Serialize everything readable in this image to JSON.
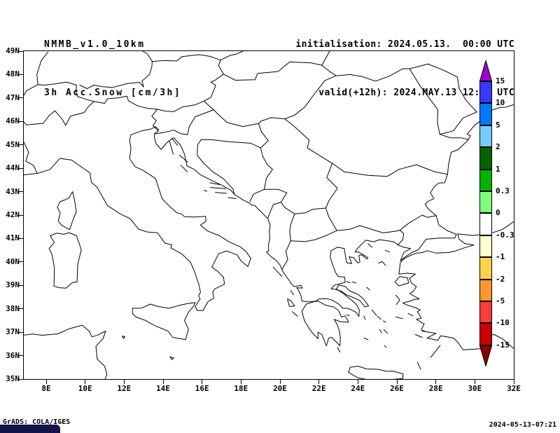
{
  "header": {
    "model": "NMMB_v1.0_10km",
    "product": "3h Acc.Snow [cm/3h]",
    "init": "initialisation: 2024.05.13.  00:00 UTC",
    "valid": "valid(+12h): 2024.MAY.13 12:00 UTC"
  },
  "map": {
    "lat_ticks": [
      "49N",
      "48N",
      "47N",
      "46N",
      "45N",
      "44N",
      "43N",
      "42N",
      "41N",
      "40N",
      "39N",
      "38N",
      "37N",
      "36N",
      "35N"
    ],
    "lon_ticks": [
      "8E",
      "10E",
      "12E",
      "14E",
      "16E",
      "18E",
      "20E",
      "22E",
      "24E",
      "26E",
      "28E",
      "30E",
      "32E"
    ],
    "lon_range": [
      6.85,
      32.0
    ],
    "lat_range": [
      35.0,
      49.0
    ]
  },
  "colorbar": {
    "tick_labels": [
      "15",
      "10",
      "5",
      "2",
      "1",
      "0.3",
      "0",
      "-0.3",
      "-1",
      "-2",
      "-5",
      "-10",
      "-15"
    ],
    "arrow_top_color": "#a000c8",
    "segment_colors": [
      "#3838ff",
      "#0077ff",
      "#77ccff",
      "#006400",
      "#00b400",
      "#7dff7d",
      "#ffffff",
      "#ffffd0",
      "#ffd24d",
      "#ff9632",
      "#fa3c3c",
      "#c80000"
    ],
    "arrow_bottom_color": "#8b0000"
  },
  "footer": {
    "credit": "GrADS: COLA/IGES",
    "timestamp": "2024-05-13-07:21"
  },
  "chart_data": {
    "type": "map",
    "title": "3h Acc.Snow [cm/3h]",
    "model": "NMMB_v1.0_10km",
    "init_time": "2024.05.13 00:00 UTC",
    "valid_time": "2024.MAY.13 12:00 UTC (+12h)",
    "region": {
      "lon_min_e": 6.85,
      "lon_max_e": 32,
      "lat_min_n": 35,
      "lat_max_n": 49
    },
    "colorbar_levels": [
      15,
      10,
      5,
      2,
      1,
      0.3,
      0,
      -0.3,
      -1,
      -2,
      -5,
      -10,
      -15
    ],
    "field_summary": "No snow accumulation shaded anywhere in the domain; map shows only coastlines and country borders on a blank field"
  }
}
